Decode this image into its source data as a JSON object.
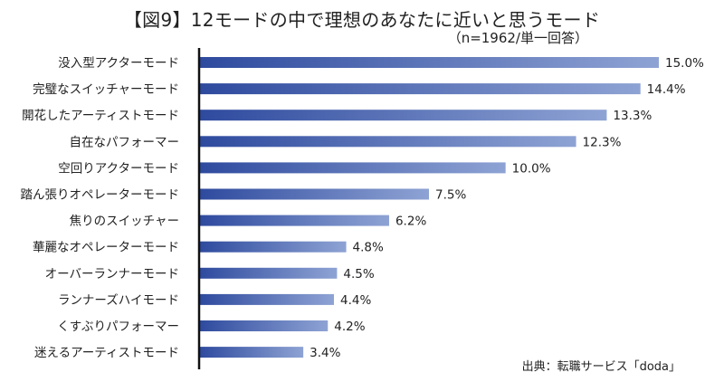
{
  "chart_data": {
    "type": "bar",
    "orientation": "horizontal",
    "title": "【図9】12モードの中で理想のあなたに近いと思うモード",
    "subtitle": "（n=1962/単一回答）",
    "categories": [
      "没入型アクターモード",
      "完璧なスイッチャーモード",
      "開花したアーティストモード",
      "自在なパフォーマー",
      "空回りアクターモード",
      "踏ん張りオペレーターモード",
      "焦りのスイッチャー",
      "華麗なオペレーターモード",
      "オーバーランナーモード",
      "ランナーズハイモード",
      "くすぶりパフォーマー",
      "迷えるアーティストモード"
    ],
    "values": [
      15.0,
      14.4,
      13.3,
      12.3,
      10.0,
      7.5,
      6.2,
      4.8,
      4.5,
      4.4,
      4.2,
      3.4
    ],
    "value_labels": [
      "15.0%",
      "14.4%",
      "13.3%",
      "12.3%",
      "10.0%",
      "7.5%",
      "6.2%",
      "4.8%",
      "4.5%",
      "4.4%",
      "4.2%",
      "3.4%"
    ],
    "unit": "%",
    "xlim": [
      0,
      15.0
    ],
    "grid": false,
    "colors": {
      "bar_start": "#2e4a9e",
      "bar_end": "#8ea3d4",
      "axis": "#111111"
    }
  },
  "source": "出典：転職サービス「doda」"
}
